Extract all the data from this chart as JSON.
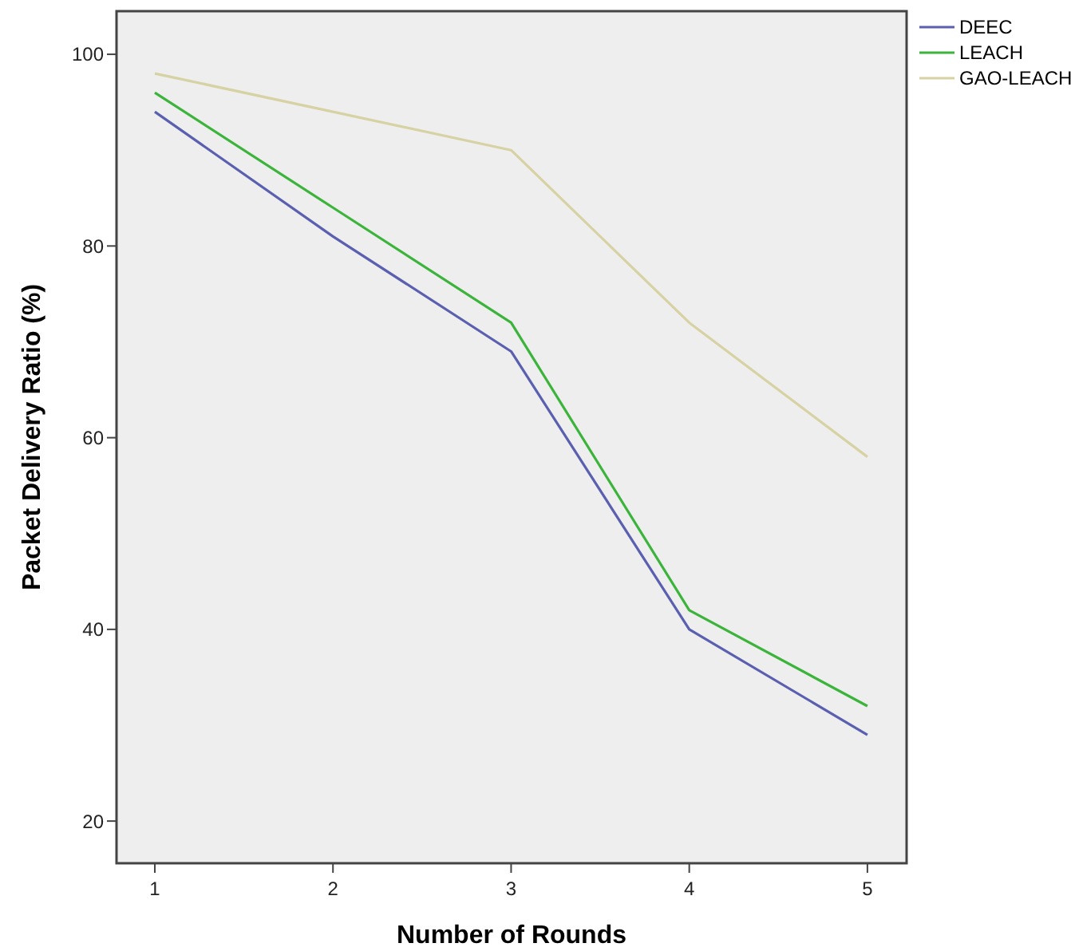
{
  "chart_data": {
    "type": "line",
    "xlabel": "Number of Rounds",
    "ylabel": "Packet Delivery Ratio (%)",
    "x": [
      1,
      2,
      3,
      4,
      5
    ],
    "xlim": [
      0.785,
      5.22
    ],
    "xticks": [
      1,
      2,
      3,
      4,
      5
    ],
    "ylim": [
      15.6,
      104.5
    ],
    "yticks": [
      20,
      40,
      60,
      80,
      100
    ],
    "grid": false,
    "legend": "top right",
    "marker": "none",
    "line_style": "solid",
    "series": [
      {
        "name": "DEEC",
        "color": "#5a5fb0",
        "values": [
          94,
          81,
          69,
          40,
          29
        ]
      },
      {
        "name": "LEACH",
        "color": "#3cb43c",
        "values": [
          96,
          84,
          72,
          42,
          32
        ]
      },
      {
        "name": "GAO-LEACH",
        "color": "#d6d2a4",
        "values": [
          98,
          94,
          90,
          72,
          58
        ]
      }
    ]
  }
}
